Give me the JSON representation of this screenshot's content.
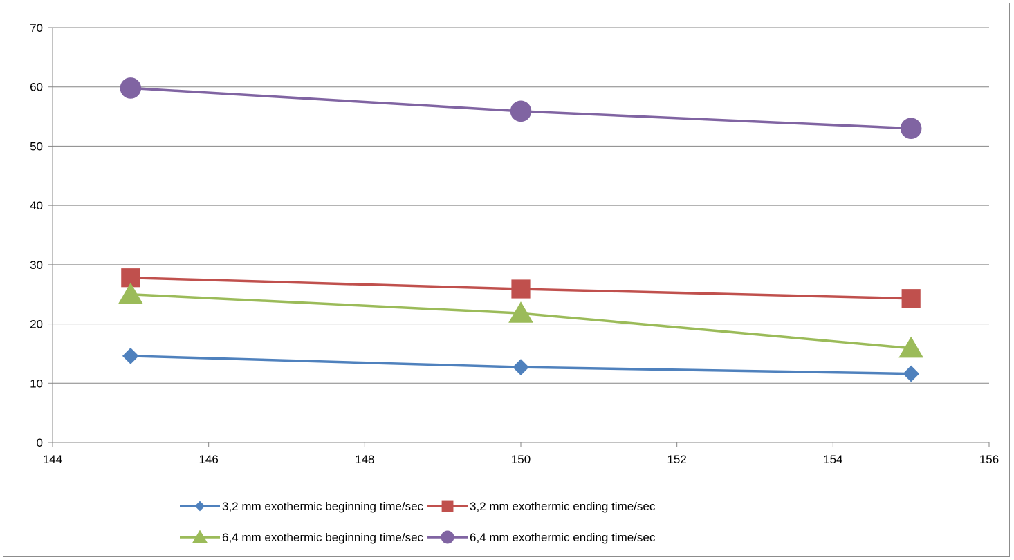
{
  "chart_data": {
    "type": "scatter",
    "mode": "lines+markers",
    "title": "",
    "xlabel": "",
    "ylabel": "",
    "xlim": [
      144,
      156
    ],
    "ylim": [
      0,
      70
    ],
    "xticks": [
      "144",
      "146",
      "148",
      "150",
      "152",
      "154",
      "156"
    ],
    "yticks": [
      "0",
      "10",
      "20",
      "30",
      "40",
      "50",
      "60",
      "70"
    ],
    "grid": "horizontal",
    "legend": "bottom",
    "series": [
      {
        "name": "3,2 mm exothermic beginning time/sec",
        "color": "#4f81bd",
        "marker": "diamond",
        "points": [
          {
            "x": 145,
            "y": 14.6
          },
          {
            "x": 150,
            "y": 12.7
          },
          {
            "x": 155,
            "y": 11.6
          }
        ]
      },
      {
        "name": "3,2 mm exothermic ending time/sec",
        "color": "#c0504d",
        "marker": "square",
        "points": [
          {
            "x": 145,
            "y": 27.8
          },
          {
            "x": 150,
            "y": 25.9
          },
          {
            "x": 155,
            "y": 24.3
          }
        ]
      },
      {
        "name": "6,4 mm exothermic beginning time/sec",
        "color": "#9bbb59",
        "marker": "triangle",
        "points": [
          {
            "x": 145,
            "y": 25.0
          },
          {
            "x": 150,
            "y": 21.8
          },
          {
            "x": 155,
            "y": 15.9
          }
        ]
      },
      {
        "name": "6,4 mm exothermic ending time/sec",
        "color": "#8064a2",
        "marker": "circle",
        "points": [
          {
            "x": 145,
            "y": 59.8
          },
          {
            "x": 150,
            "y": 55.9
          },
          {
            "x": 155,
            "y": 53.0
          }
        ]
      }
    ]
  }
}
